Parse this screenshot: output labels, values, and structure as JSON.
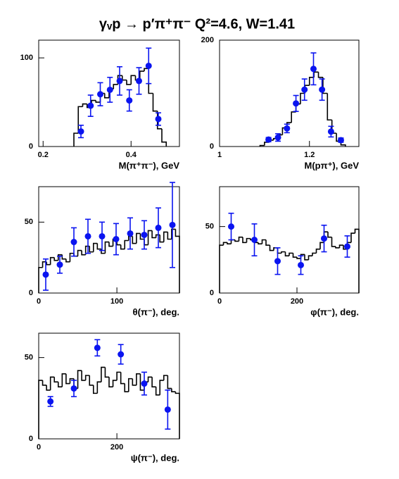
{
  "title": "γᵥp → p′π⁺π⁻   Q²=4.6, W=1.41",
  "chart_data": [
    {
      "type": "histogram",
      "xlabel": "M(π⁺π⁻), GeV",
      "xlim": [
        0.19,
        0.51
      ],
      "ylim": [
        0,
        120
      ],
      "xticks": [
        0.2,
        0.4
      ],
      "yticks": [
        0,
        100
      ],
      "bins": [
        0.27,
        0.28,
        0.29,
        0.3,
        0.31,
        0.32,
        0.33,
        0.34,
        0.35,
        0.36,
        0.37,
        0.38,
        0.39,
        0.4,
        0.41,
        0.42,
        0.43,
        0.44,
        0.45,
        0.46,
        0.47,
        0.48
      ],
      "counts": [
        15,
        45,
        48,
        44,
        52,
        50,
        60,
        55,
        65,
        70,
        80,
        75,
        70,
        80,
        75,
        85,
        88,
        60,
        40,
        20,
        5
      ],
      "color": "#000000",
      "points": {
        "color": "#0a14f0",
        "x": [
          0.286,
          0.308,
          0.33,
          0.352,
          0.374,
          0.396,
          0.418,
          0.44,
          0.462
        ],
        "values": [
          17,
          46,
          59,
          64,
          74,
          52,
          74,
          91,
          31
        ],
        "errors": [
          7,
          12,
          13,
          14,
          16,
          12,
          15,
          20,
          7
        ]
      }
    },
    {
      "type": "histogram",
      "xlabel": "M(pπ⁺), GeV",
      "xlim": [
        1,
        1.31
      ],
      "ylim": [
        0,
        200
      ],
      "xticks": [
        1,
        1.2
      ],
      "yticks": [
        0,
        200
      ],
      "bins": [
        1.09,
        1.1,
        1.11,
        1.12,
        1.13,
        1.14,
        1.15,
        1.16,
        1.17,
        1.18,
        1.19,
        1.2,
        1.21,
        1.22,
        1.23,
        1.24,
        1.25,
        1.26,
        1.27,
        1.28
      ],
      "counts": [
        2,
        8,
        12,
        15,
        22,
        35,
        45,
        65,
        80,
        100,
        115,
        130,
        140,
        130,
        100,
        50,
        25,
        10,
        3
      ],
      "color": "#000000",
      "points": {
        "color": "#0a14f0",
        "x": [
          1.109,
          1.13,
          1.15,
          1.17,
          1.189,
          1.209,
          1.228,
          1.248,
          1.27
        ],
        "values": [
          13,
          17,
          34,
          81,
          107,
          146,
          107,
          28,
          12
        ],
        "errors": [
          4,
          7,
          8,
          15,
          20,
          30,
          20,
          10,
          4
        ]
      }
    },
    {
      "type": "histogram",
      "xlabel": "θ(π⁻), deg.",
      "xlim": [
        0,
        180
      ],
      "ylim": [
        0,
        75
      ],
      "xticks": [
        0,
        100
      ],
      "yticks": [
        0,
        50
      ],
      "bins": [
        0,
        5,
        10,
        15,
        20,
        25,
        30,
        35,
        40,
        45,
        50,
        55,
        60,
        65,
        70,
        75,
        80,
        85,
        90,
        95,
        100,
        105,
        110,
        115,
        120,
        125,
        130,
        135,
        140,
        145,
        150,
        155,
        160,
        165,
        170,
        175,
        180
      ],
      "counts": [
        18,
        22,
        20,
        25,
        23,
        27,
        24,
        22,
        28,
        26,
        30,
        27,
        33,
        29,
        35,
        31,
        28,
        36,
        33,
        38,
        34,
        31,
        37,
        40,
        35,
        42,
        38,
        34,
        44,
        39,
        41,
        36,
        43,
        38,
        45,
        40
      ],
      "color": "#000000",
      "points": {
        "color": "#0a14f0",
        "x": [
          9,
          27,
          45,
          63,
          81,
          99,
          117,
          135,
          153,
          171
        ],
        "values": [
          13,
          20,
          36,
          40,
          40,
          38,
          42,
          41,
          46,
          48
        ],
        "errors": [
          11,
          6,
          10,
          12,
          10,
          11,
          11,
          10,
          14,
          30
        ]
      }
    },
    {
      "type": "histogram",
      "xlabel": "φ(π⁻), deg.",
      "xlim": [
        0,
        360
      ],
      "ylim": [
        0,
        80
      ],
      "xticks": [
        0,
        200
      ],
      "yticks": [
        0,
        50
      ],
      "bins": [
        0,
        10,
        20,
        30,
        40,
        50,
        60,
        70,
        80,
        90,
        100,
        110,
        120,
        130,
        140,
        150,
        160,
        170,
        180,
        190,
        200,
        210,
        220,
        230,
        240,
        250,
        260,
        270,
        280,
        290,
        300,
        310,
        320,
        330,
        340,
        350,
        360
      ],
      "counts": [
        36,
        38,
        37,
        40,
        39,
        42,
        38,
        41,
        40,
        38,
        37,
        40,
        36,
        32,
        34,
        30,
        31,
        28,
        30,
        27,
        26,
        29,
        25,
        28,
        30,
        33,
        38,
        46,
        42,
        35,
        34,
        36,
        33,
        38,
        45,
        48
      ],
      "color": "#000000",
      "points": {
        "color": "#0a14f0",
        "x": [
          30,
          90,
          150,
          210,
          270,
          330
        ],
        "values": [
          50,
          40,
          24,
          21,
          41,
          35
        ],
        "errors": [
          10,
          12,
          10,
          7,
          10,
          8
        ]
      }
    },
    {
      "type": "histogram",
      "xlabel": "ψ(π⁻), deg.",
      "xlim": [
        0,
        360
      ],
      "ylim": [
        0,
        65
      ],
      "xticks": [
        0,
        200
      ],
      "yticks": [
        0,
        50
      ],
      "bins": [
        0,
        10,
        20,
        30,
        40,
        50,
        60,
        70,
        80,
        90,
        100,
        110,
        120,
        130,
        140,
        150,
        160,
        170,
        180,
        190,
        200,
        210,
        220,
        230,
        240,
        250,
        260,
        270,
        280,
        290,
        300,
        310,
        320,
        330,
        340,
        350,
        360
      ],
      "counts": [
        36,
        33,
        30,
        38,
        35,
        32,
        40,
        34,
        37,
        31,
        42,
        36,
        39,
        33,
        28,
        35,
        44,
        38,
        32,
        36,
        41,
        34,
        29,
        37,
        33,
        40,
        30,
        35,
        38,
        32,
        27,
        36,
        39,
        31,
        29,
        28
      ],
      "color": "#000000",
      "points": {
        "color": "#0a14f0",
        "x": [
          30,
          90,
          150,
          210,
          270,
          330
        ],
        "values": [
          23,
          31,
          56,
          52,
          34,
          18
        ],
        "errors": [
          3,
          5,
          5,
          6,
          7,
          12
        ]
      }
    }
  ]
}
